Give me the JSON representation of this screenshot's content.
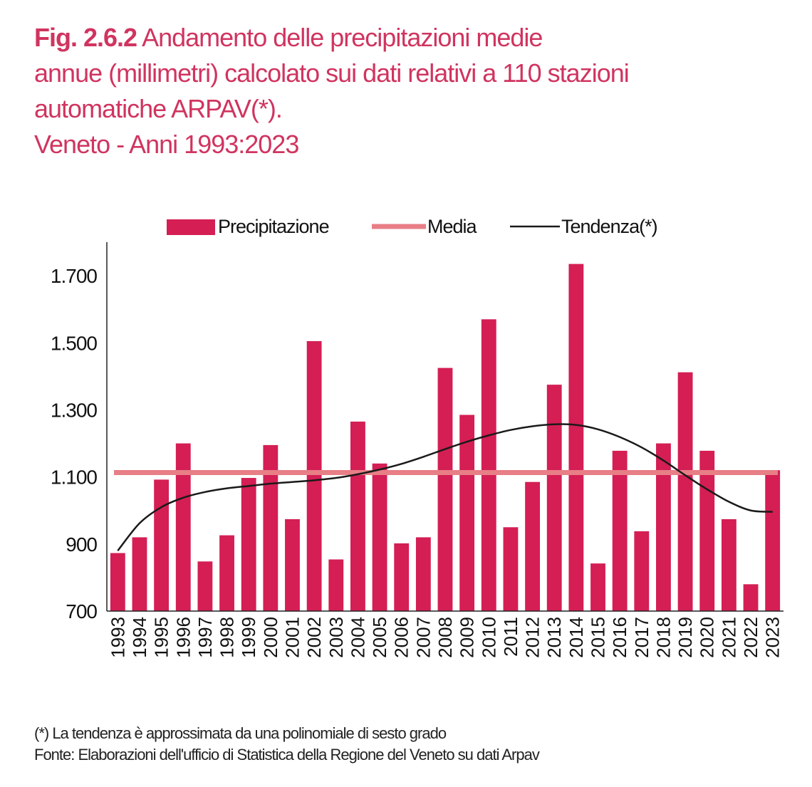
{
  "figure": {
    "number": "Fig. 2.6.2",
    "title_line1": "Andamento delle precipitazioni medie",
    "title_line2": "annue (millimetri) calcolato sui dati relativi a 110 stazioni",
    "title_line3": "automatiche ARPAV(*).",
    "title_line4": "Veneto - Anni 1993:2023"
  },
  "colors": {
    "title": "#d0345f",
    "bar": "#d41e54",
    "media": "#e87e86",
    "tendenza": "#1a1a1a"
  },
  "chart_data": {
    "type": "bar",
    "title": "Andamento delle precipitazioni medie annue (millimetri) calcolato sui dati relativi a 110 stazioni automatiche ARPAV(*). Veneto - Anni 1993:2023",
    "categories": [
      "1993",
      "1994",
      "1995",
      "1996",
      "1997",
      "1998",
      "1999",
      "2000",
      "2001",
      "2002",
      "2003",
      "2004",
      "2005",
      "2006",
      "2007",
      "2008",
      "2009",
      "2010",
      "2011",
      "2012",
      "2013",
      "2014",
      "2015",
      "2016",
      "2017",
      "2018",
      "2019",
      "2020",
      "2021",
      "2022",
      "2023"
    ],
    "series": [
      {
        "name": "Precipitazione",
        "kind": "bar",
        "values": [
          873,
          920,
          1092,
          1200,
          848,
          926,
          1097,
          1195,
          974,
          1505,
          854,
          1265,
          1140,
          902,
          920,
          1425,
          1285,
          1570,
          950,
          1085,
          1375,
          1735,
          842,
          1178,
          938,
          1200,
          1412,
          1178,
          974,
          780,
          1120
        ]
      },
      {
        "name": "Media",
        "kind": "line",
        "values": [
          1113,
          1113,
          1113,
          1113,
          1113,
          1113,
          1113,
          1113,
          1113,
          1113,
          1113,
          1113,
          1113,
          1113,
          1113,
          1113,
          1113,
          1113,
          1113,
          1113,
          1113,
          1113,
          1113,
          1113,
          1113,
          1113,
          1113,
          1113,
          1113,
          1113,
          1113
        ]
      },
      {
        "name": "Tendenza(*)",
        "kind": "line",
        "values": [
          880,
          962,
          1010,
          1038,
          1055,
          1066,
          1073,
          1080,
          1085,
          1090,
          1097,
          1108,
          1122,
          1139,
          1160,
          1183,
          1205,
          1224,
          1240,
          1251,
          1257,
          1255,
          1242,
          1219,
          1188,
          1149,
          1105,
          1063,
          1026,
          1000,
          996
        ]
      }
    ],
    "yticks": [
      "1.700",
      "1.500",
      "1.300",
      "1.100",
      "900",
      "700"
    ],
    "ytick_values": [
      1700,
      1500,
      1300,
      1100,
      900,
      700
    ],
    "ylim": [
      700,
      1800
    ],
    "grid": false,
    "legend_position": "top"
  },
  "footer": {
    "note": "(*) La tendenza è approssimata da una polinomiale di sesto grado",
    "source": "Fonte: Elaborazioni dell'ufficio di Statistica della Regione del Veneto su dati Arpav"
  }
}
